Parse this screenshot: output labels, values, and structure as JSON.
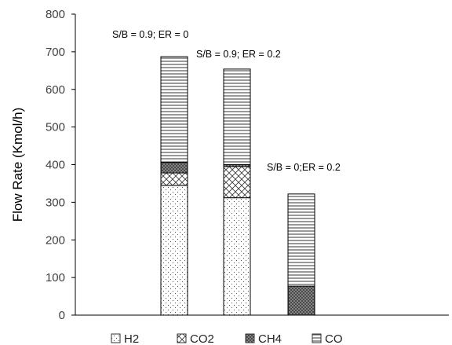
{
  "chart_data": {
    "type": "bar",
    "stacked": true,
    "categories": [
      "S/B = 0.9; ER = 0",
      "S/B = 0.9; ER = 0.2",
      "S/B = 0;ER = 0.2"
    ],
    "category_annotations": [
      "S/B = 0.9; ER = 0",
      "S/B = 0.9; ER = 0.2",
      "S/B = 0;ER = 0.2"
    ],
    "series": [
      {
        "name": "H2",
        "pattern": "dots",
        "values": [
          345,
          312,
          0
        ]
      },
      {
        "name": "CO2",
        "pattern": "cross-hatch",
        "values": [
          33,
          83,
          0
        ]
      },
      {
        "name": "CH4",
        "pattern": "dark-dots",
        "values": [
          28,
          5,
          77
        ]
      },
      {
        "name": "CO",
        "pattern": "horizontal-lines",
        "values": [
          281,
          254,
          245
        ]
      }
    ],
    "ylabel": "Flow Rate (Kmol/h)",
    "xlabel": "",
    "ylim": [
      0,
      800
    ],
    "yticks": [
      0,
      100,
      200,
      300,
      400,
      500,
      600,
      700,
      800
    ],
    "grid": false,
    "legend_position": "bottom",
    "colors": {
      "bar_outline": "#000000",
      "axis": "#000000"
    }
  }
}
